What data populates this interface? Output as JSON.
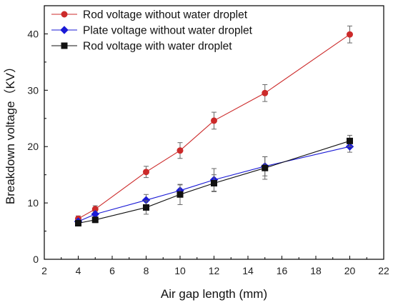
{
  "chart_data": {
    "type": "line",
    "title": "",
    "xlabel": "Air gap length (mm)",
    "ylabel": "Breakdown voltage（KV）",
    "xlim": [
      2,
      22
    ],
    "ylim": [
      0,
      45
    ],
    "xticks": [
      2,
      4,
      6,
      8,
      10,
      12,
      14,
      16,
      18,
      20,
      22
    ],
    "yticks": [
      0,
      10,
      20,
      30,
      40
    ],
    "grid": false,
    "legend_position": "top-left",
    "x": [
      4,
      5,
      8,
      10,
      12,
      15,
      20
    ],
    "series": [
      {
        "name": "Rod voltage without water droplet",
        "color": "#cc2a2a",
        "marker": "circle",
        "values": [
          7.2,
          8.9,
          15.5,
          19.3,
          24.6,
          29.5,
          39.9
        ],
        "errors": [
          0.5,
          0.6,
          1.0,
          1.4,
          1.5,
          1.5,
          1.5
        ]
      },
      {
        "name": "Plate voltage without water droplet",
        "color": "#1a1ad6",
        "marker": "diamond",
        "values": [
          6.7,
          8.0,
          10.5,
          12.2,
          14.1,
          16.5,
          20.0
        ],
        "errors": [
          0.4,
          0.5,
          1.0,
          1.0,
          2.0,
          1.7,
          1.0
        ]
      },
      {
        "name": "Rod voltage with water droplet",
        "color": "#111111",
        "marker": "square",
        "values": [
          6.4,
          7.0,
          9.2,
          11.5,
          13.5,
          16.2,
          21.0
        ],
        "errors": [
          0.4,
          0.5,
          1.2,
          1.8,
          1.5,
          2.0,
          1.0
        ]
      }
    ]
  }
}
